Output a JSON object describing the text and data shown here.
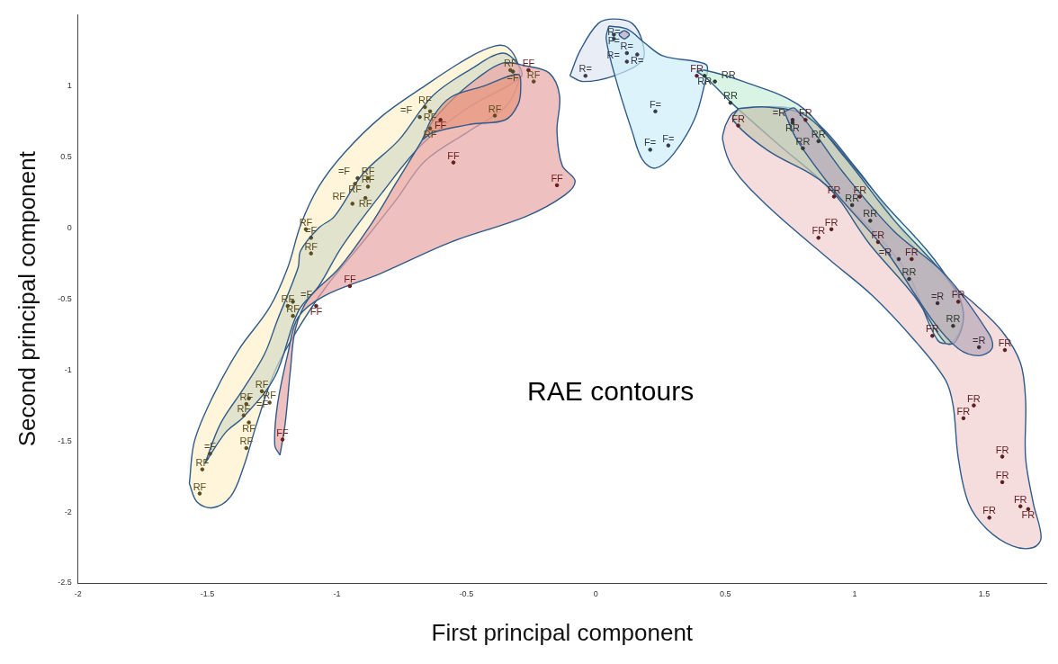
{
  "chart_data": {
    "type": "scatter",
    "xlabel": "First principal component",
    "ylabel": "Second principal component",
    "annotations": [
      "RAE contours"
    ],
    "xlim": [
      -2,
      1.74
    ],
    "ylim": [
      -2.5,
      1.5
    ],
    "xticks": [
      -2,
      -1.5,
      -1,
      -0.5,
      0,
      0.5,
      1,
      1.5
    ],
    "yticks": [
      -2.5,
      -2,
      -1.5,
      -1,
      -0.5,
      0,
      0.5,
      1
    ],
    "grid": false,
    "series": [
      {
        "type": "area",
        "color": "#fef1cc",
        "x": [
          -1.57,
          -1.54,
          -1.48,
          -1.41,
          -1.36,
          -1.31,
          -1.24,
          -1.16,
          -1.04,
          -0.9,
          -0.77,
          -0.66,
          -0.49,
          -0.35,
          -0.3,
          -0.3,
          -0.34,
          -0.39,
          -0.49,
          -0.66,
          -0.83,
          -0.97,
          -1.07,
          -1.14,
          -1.19,
          -1.26,
          -1.38,
          -1.48,
          -1.55
        ],
        "values": [
          -1.8,
          -1.93,
          -1.97,
          -1.89,
          -1.68,
          -1.38,
          -1.01,
          -0.74,
          -0.41,
          -0.1,
          0.2,
          0.47,
          0.68,
          0.85,
          1.02,
          1.15,
          1.27,
          1.28,
          1.2,
          1.0,
          0.78,
          0.53,
          0.29,
          0.02,
          -0.28,
          -0.56,
          -0.86,
          -1.19,
          -1.5
        ]
      },
      {
        "type": "area",
        "color": "#d6dcc6",
        "x": [
          -1.51,
          -1.43,
          -1.36,
          -1.24,
          -1.15,
          -1.07,
          -0.98,
          -0.82,
          -0.67,
          -0.49,
          -0.29,
          -0.3,
          -0.36,
          -0.48,
          -0.63,
          -0.76,
          -0.9,
          -1.01,
          -1.07,
          -1.14,
          -1.15,
          -1.23,
          -1.28,
          -1.36,
          -1.45
        ],
        "values": [
          -1.66,
          -1.44,
          -1.33,
          -1.05,
          -0.59,
          -0.41,
          -0.13,
          0.26,
          0.59,
          0.85,
          1.06,
          1.15,
          1.23,
          1.12,
          0.93,
          0.62,
          0.38,
          0.08,
          0,
          -0.16,
          -0.28,
          -0.65,
          -0.89,
          -1.13,
          -1.38
        ]
      },
      {
        "type": "area",
        "color": "#e8a5a5",
        "x": [
          -1.22,
          -1.24,
          -1.23,
          -1.19,
          -1.15,
          -1.05,
          -0.83,
          -0.56,
          -0.27,
          -0.12,
          -0.08,
          -0.13,
          -0.15,
          -0.14,
          -0.18,
          -0.27,
          -0.36,
          -0.46,
          -0.55,
          -0.63,
          -0.67,
          -0.77,
          -0.87,
          -0.99,
          -1.11,
          -1.16,
          -1.18,
          -1.2
        ],
        "values": [
          -1.6,
          -1.53,
          -1.25,
          -0.89,
          -0.63,
          -0.48,
          -0.32,
          -0.1,
          0.08,
          0.23,
          0.33,
          0.44,
          0.68,
          0.93,
          1.09,
          1.14,
          1.16,
          1.05,
          0.91,
          0.75,
          0.62,
          0.32,
          0.02,
          -0.28,
          -0.5,
          -0.71,
          -1.01,
          -1.38
        ]
      },
      {
        "type": "area",
        "color": "#e8977e",
        "x": [
          -0.67,
          -0.63,
          -0.56,
          -0.43,
          -0.3,
          -0.29,
          -0.3,
          -0.35,
          -0.48,
          -0.63
        ],
        "values": [
          0.62,
          0.78,
          0.92,
          1.0,
          1.08,
          0.99,
          0.87,
          0.76,
          0.73,
          0.67
        ]
      },
      {
        "type": "area",
        "color": "#dfe5f1",
        "x": [
          -0.1,
          -0.05,
          0.07,
          0.18,
          0.18,
          0.14,
          0.07,
          0.01,
          -0.06
        ],
        "values": [
          1.07,
          1.03,
          1.07,
          1.18,
          1.31,
          1.44,
          1.47,
          1.44,
          1.25
        ]
      },
      {
        "type": "area",
        "color": "#cdeefa",
        "x": [
          0.05,
          0.12,
          0.19,
          0.26,
          0.39,
          0.43,
          0.42,
          0.38,
          0.3,
          0.23,
          0.18,
          0.14,
          0.08,
          0.04
        ],
        "values": [
          1.42,
          1.4,
          1.3,
          1.21,
          1.17,
          1.14,
          1.01,
          0.76,
          0.52,
          0.42,
          0.48,
          0.68,
          1.03,
          1.33
        ]
      },
      {
        "type": "area",
        "color": "#c8a8c0",
        "x": [
          0.11,
          0.12,
          0.13,
          0.12,
          0.11,
          0.1,
          0.09,
          0.1
        ],
        "values": [
          1.39,
          1.38,
          1.36,
          1.34,
          1.33,
          1.34,
          1.36,
          1.38
        ]
      },
      {
        "type": "area",
        "color": "#f2cfcf",
        "x": [
          0.5,
          0.53,
          0.6,
          0.8,
          1.01,
          1.24,
          1.38,
          1.46,
          1.57,
          1.64,
          1.66,
          1.66,
          1.69,
          1.72,
          1.69,
          1.61,
          1.51,
          1.44,
          1.4,
          1.38,
          1.35,
          1.24,
          1.07,
          0.9,
          0.66,
          0.53,
          0.49
        ],
        "values": [
          0.72,
          0.81,
          0.85,
          0.81,
          0.41,
          -0.16,
          -0.41,
          -0.53,
          -0.73,
          -0.95,
          -1.21,
          -1.62,
          -1.94,
          -2.18,
          -2.25,
          -2.24,
          -2.12,
          -1.94,
          -1.62,
          -1.25,
          -1.07,
          -0.81,
          -0.48,
          -0.22,
          0.16,
          0.42,
          0.62
        ]
      },
      {
        "type": "area",
        "color": "#c9eed8",
        "x": [
          0.39,
          0.42,
          0.57,
          0.78,
          0.91,
          1.12,
          1.28,
          1.37,
          1.42,
          1.38,
          1.32,
          1.19,
          0.89,
          0.71,
          0.53,
          0.43
        ],
        "values": [
          1.1,
          1.11,
          1.03,
          0.87,
          0.62,
          0.16,
          -0.16,
          -0.39,
          -0.61,
          -0.8,
          -0.79,
          -0.28,
          0.3,
          0.58,
          0.87,
          1.05
        ]
      },
      {
        "type": "area",
        "color": "#c5c7b4",
        "x": [
          0.55,
          0.66,
          0.81,
          0.96,
          1.14,
          1.38,
          1.42,
          1.39,
          1.35,
          1.23,
          1.06,
          0.89,
          0.66,
          0.53
        ],
        "values": [
          0.84,
          0.85,
          0.79,
          0.5,
          0.08,
          -0.41,
          -0.61,
          -0.8,
          -0.81,
          -0.48,
          -0.12,
          0.3,
          0.55,
          0.76
        ]
      },
      {
        "type": "area",
        "color": "#b8aabb",
        "x": [
          0.73,
          0.77,
          0.96,
          1.15,
          1.35,
          1.52,
          1.53,
          1.48,
          1.4,
          1.3,
          1.12,
          0.93,
          0.78,
          0.73
        ],
        "values": [
          0.82,
          0.84,
          0.38,
          -0.02,
          -0.33,
          -0.75,
          -0.85,
          -0.9,
          -0.85,
          -0.65,
          -0.16,
          0.24,
          0.61,
          0.81
        ]
      },
      {
        "type": "scatter",
        "marker": "circle",
        "color": "#5c4d1e",
        "x": [
          -0.66,
          -0.64,
          -0.64,
          -0.39,
          -0.33,
          -0.24,
          -0.88,
          -0.93,
          -0.88,
          -0.89,
          -0.94,
          -1.12,
          -1.1,
          -1.19,
          -1.17,
          -1.29,
          -1.35,
          -1.26,
          -1.36,
          -1.34,
          -1.35,
          -1.52,
          -1.53
        ],
        "values": [
          0.85,
          0.82,
          0.7,
          0.79,
          1.11,
          1.03,
          0.35,
          0.31,
          0.29,
          0.21,
          0.17,
          -0.01,
          -0.18,
          -0.55,
          -0.62,
          -1.15,
          -1.24,
          -1.23,
          -1.32,
          -1.37,
          -1.55,
          -1.7,
          -1.87
        ],
        "value_labels": [
          "RF",
          "RF",
          "RF",
          "RF",
          "RF",
          "RF",
          "RF",
          "RF",
          "RF",
          "RF",
          "RF",
          "RF",
          "RF",
          "RF",
          "RF",
          "RF",
          "RF",
          "RF",
          "RF",
          "RF",
          "RF",
          "RF",
          "RF"
        ]
      },
      {
        "type": "scatter",
        "marker": "circle",
        "color": "#4a4a30",
        "x": [
          -0.68,
          -0.32,
          -0.92,
          -1.1,
          -1.17,
          -1.34,
          -1.49
        ],
        "values": [
          0.78,
          1.1,
          0.35,
          -0.07,
          -0.52,
          -1.2,
          -1.59
        ],
        "value_labels": [
          "=F",
          "=F",
          "=F",
          "=F",
          "=F",
          "=F",
          "=F"
        ]
      },
      {
        "type": "scatter",
        "marker": "circle",
        "color": "#6b1e1e",
        "x": [
          -0.6,
          -0.26,
          -0.55,
          -0.15,
          -0.95,
          -1.08,
          -1.21
        ],
        "values": [
          0.76,
          1.11,
          0.46,
          0.3,
          -0.41,
          -0.55,
          -1.49
        ],
        "value_labels": [
          "FF",
          "FF",
          "FF",
          "FF",
          "FF",
          "FF",
          "FF"
        ]
      },
      {
        "type": "scatter",
        "marker": "circle",
        "color": "#3a3a4a",
        "x": [
          0.07,
          0.12,
          0.16,
          0.12,
          -0.04
        ],
        "values": [
          1.33,
          1.23,
          1.22,
          1.17,
          1.07
        ],
        "value_labels": [
          "R=",
          "R=",
          "R=",
          "R=",
          "R="
        ]
      },
      {
        "type": "scatter",
        "marker": "circle",
        "color": "#2e3e4a",
        "x": [
          0.07,
          0.23,
          0.21,
          0.28
        ],
        "values": [
          1.36,
          0.82,
          0.55,
          0.58
        ],
        "value_labels": [
          "F=",
          "F=",
          "F=",
          "F="
        ]
      },
      {
        "type": "scatter",
        "marker": "circle",
        "color": "#5a1e22",
        "x": [
          0.39,
          0.55,
          0.81,
          0.92,
          1.02,
          0.86,
          0.91,
          1.09,
          1.22,
          1.4,
          1.3,
          1.58,
          1.46,
          1.42,
          1.57,
          1.57,
          1.64,
          1.67,
          1.52
        ],
        "values": [
          1.07,
          0.72,
          0.76,
          0.22,
          0.22,
          -0.07,
          -0.01,
          -0.1,
          -0.22,
          -0.52,
          -0.76,
          -0.86,
          -1.25,
          -1.34,
          -1.61,
          -1.79,
          -1.96,
          -1.98,
          -2.04
        ],
        "value_labels": [
          "FR",
          "FR",
          "FR",
          "FR",
          "FR",
          "FR",
          "FR",
          "FR",
          "FR",
          "FR",
          "FR",
          "FR",
          "FR",
          "FR",
          "FR",
          "FR",
          "FR",
          "FR",
          "FR"
        ]
      },
      {
        "type": "scatter",
        "marker": "circle",
        "color": "#2e3a2e",
        "x": [
          0.42,
          0.46,
          0.52,
          0.76,
          0.8,
          0.86,
          0.99,
          1.06,
          1.21,
          1.38
        ],
        "values": [
          1.07,
          1.03,
          0.88,
          0.74,
          0.56,
          0.61,
          0.16,
          0.05,
          -0.36,
          -0.69
        ],
        "value_labels": [
          "RR",
          "RR",
          "RR",
          "RR",
          "RR",
          "RR",
          "RR",
          "RR",
          "RR",
          "RR"
        ]
      },
      {
        "type": "scatter",
        "marker": "circle",
        "color": "#3a2a3a",
        "x": [
          0.76,
          1.17,
          1.32,
          1.48
        ],
        "values": [
          0.76,
          -0.22,
          -0.53,
          -0.84
        ],
        "value_labels": [
          "=R",
          "=R",
          "=R",
          "=R"
        ]
      }
    ]
  }
}
